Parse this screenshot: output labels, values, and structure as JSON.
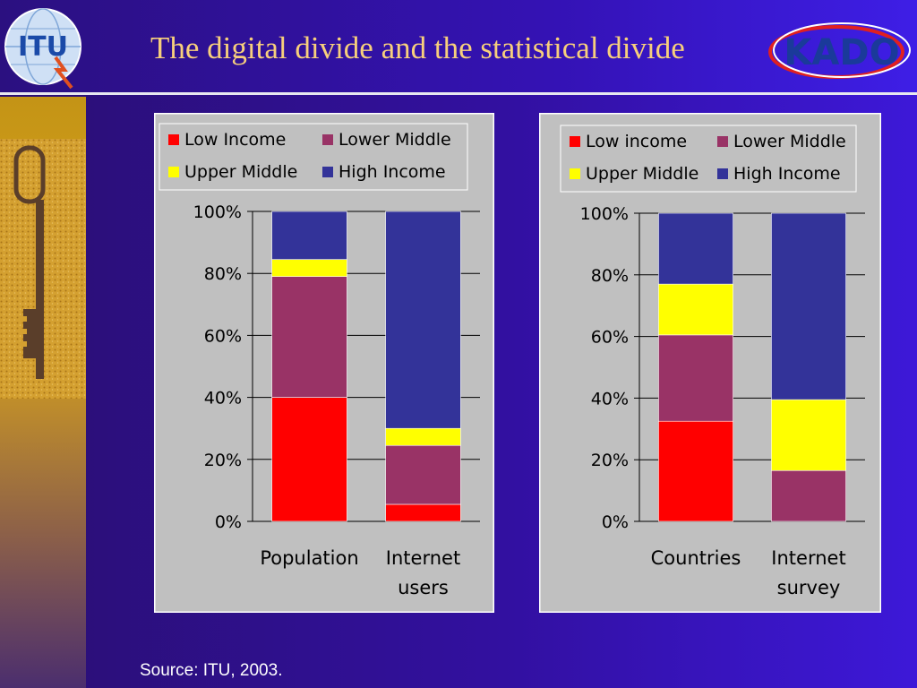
{
  "slide": {
    "title": "The digital divide and the statistical divide",
    "source": "Source: ITU, 2003.",
    "logo_left_text": "ITU",
    "logo_right_text": "KADO"
  },
  "colors": {
    "low": "#ff0000",
    "lower_middle": "#993366",
    "upper_middle": "#ffff00",
    "high": "#333399",
    "title": "#f7cf7c",
    "chart_bg": "#c0c0c0"
  },
  "chart_data": [
    {
      "type": "bar",
      "stacked": true,
      "categories": [
        "Population",
        "Internet users"
      ],
      "category_lines": [
        [
          "Population"
        ],
        [
          "Internet",
          "users"
        ]
      ],
      "series": [
        {
          "name": "Low Income",
          "color": "#ff0000",
          "values": [
            40,
            5.5
          ]
        },
        {
          "name": "Lower Middle",
          "color": "#993366",
          "values": [
            39,
            19
          ]
        },
        {
          "name": "Upper Middle",
          "color": "#ffff00",
          "values": [
            5.5,
            5.5
          ]
        },
        {
          "name": "High Income",
          "color": "#333399",
          "values": [
            15.5,
            70
          ]
        }
      ],
      "ylim": [
        0,
        100
      ],
      "yticks": [
        "0%",
        "20%",
        "40%",
        "60%",
        "80%",
        "100%"
      ],
      "grid": true,
      "legend": "top",
      "title": "",
      "xlabel": "",
      "ylabel": ""
    },
    {
      "type": "bar",
      "stacked": true,
      "categories": [
        "Countries",
        "Internet survey"
      ],
      "category_lines": [
        [
          "Countries"
        ],
        [
          "Internet",
          "survey"
        ]
      ],
      "series": [
        {
          "name": "Low income",
          "color": "#ff0000",
          "values": [
            32.5,
            0
          ]
        },
        {
          "name": "Lower Middle",
          "color": "#993366",
          "values": [
            28,
            16.5
          ]
        },
        {
          "name": "Upper Middle",
          "color": "#ffff00",
          "values": [
            16.5,
            23
          ]
        },
        {
          "name": "High Income",
          "color": "#333399",
          "values": [
            23,
            60.5
          ]
        }
      ],
      "ylim": [
        0,
        100
      ],
      "yticks": [
        "0%",
        "20%",
        "40%",
        "60%",
        "80%",
        "100%"
      ],
      "grid": true,
      "legend": "top",
      "title": "",
      "xlabel": "",
      "ylabel": ""
    }
  ]
}
